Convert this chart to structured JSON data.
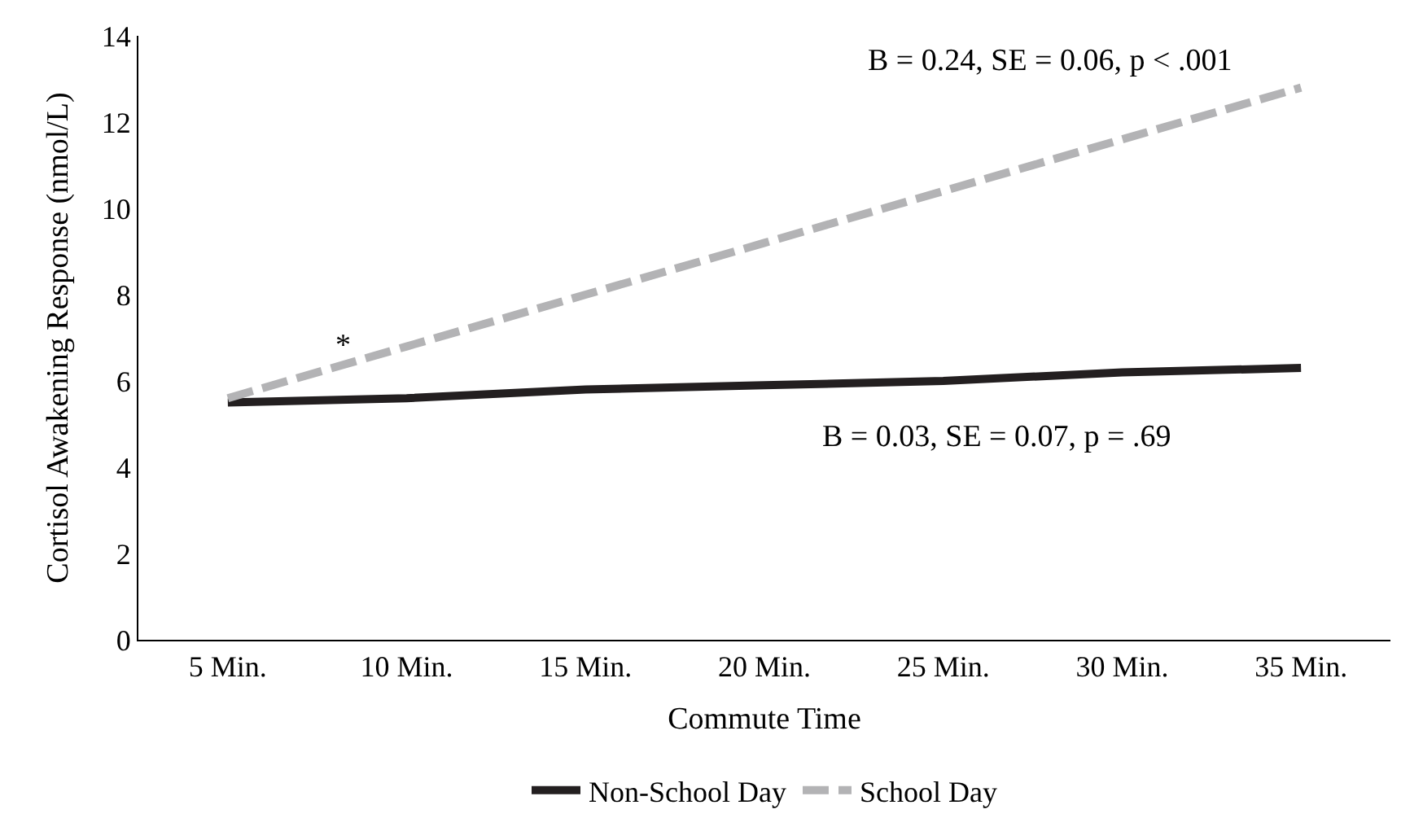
{
  "chart_data": {
    "type": "line",
    "xlabel": "Commute Time",
    "ylabel": "Cortisol Awakening Response (nmol/L)",
    "categories": [
      "5 Min.",
      "10 Min.",
      "15 Min.",
      "20 Min.",
      "25 Min.",
      "30 Min.",
      "35 Min."
    ],
    "series": [
      {
        "name": "Non-School Day",
        "color": "#231f20",
        "line_style": "solid",
        "values": [
          5.5,
          5.6,
          5.8,
          5.9,
          6.0,
          6.2,
          6.3
        ]
      },
      {
        "name": "School Day",
        "color": "#b3b3b5",
        "line_style": "dashed",
        "values": [
          5.6,
          6.8,
          8.0,
          9.2,
          10.4,
          11.6,
          12.8
        ]
      }
    ],
    "ylim": [
      0,
      14
    ],
    "yticks": [
      0,
      2,
      4,
      6,
      8,
      10,
      12,
      14
    ],
    "legend": "bottom",
    "marker": "none",
    "annotations": [
      "B = 0.24, SE = 0.06, p < .001",
      "B = 0.03, SE = 0.07, p = .69",
      "*"
    ]
  }
}
